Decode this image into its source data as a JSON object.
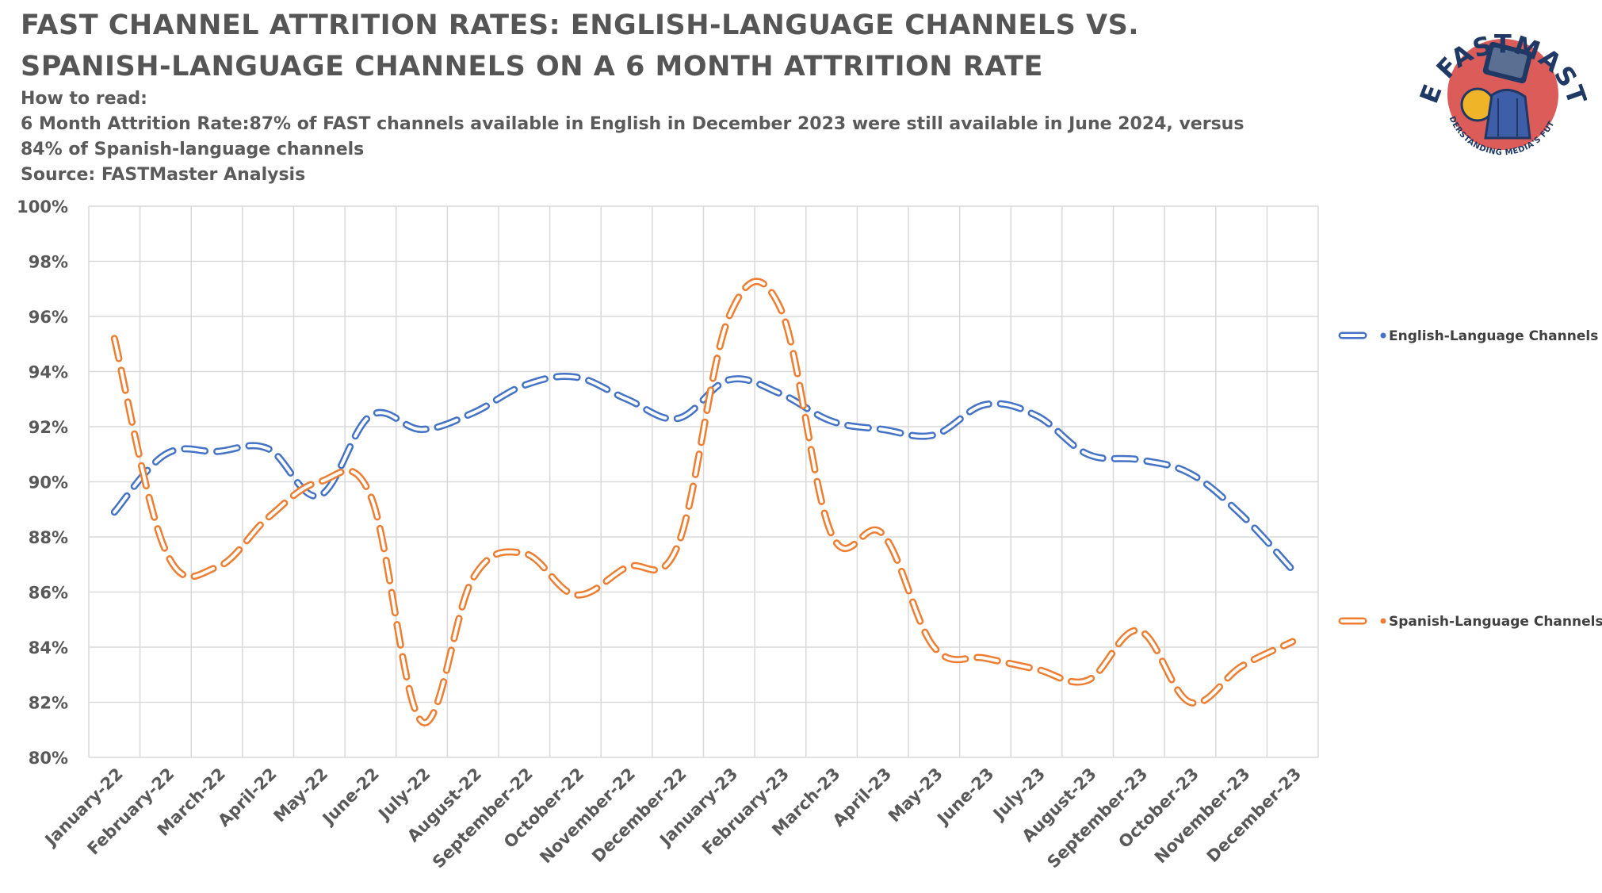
{
  "header": {
    "title": "FAST CHANNEL ATTRITION RATES: ENGLISH-LANGUAGE CHANNELS VS. SPANISH-LANGUAGE CHANNELS ON A 6 MONTH ATTRITION RATE",
    "how_to_read": "How to read:",
    "description": "6 Month Attrition Rate:87% of FAST channels available in English in December 2023 were still available in June 2024, versus 84% of Spanish-language channels",
    "source": "Source: FASTMaster Analysis"
  },
  "logo": {
    "text": "THE FASTMASTER",
    "tagline": "UNDERSTANDING MEDIA'S FUTURE",
    "icon": "tv-head-mascot-icon",
    "colors": {
      "navy": "#1f3864",
      "red": "#d9534f",
      "gold": "#f0b429"
    }
  },
  "chart_data": {
    "type": "line",
    "categories": [
      "January-22",
      "February-22",
      "March-22",
      "April-22",
      "May-22",
      "June-22",
      "July-22",
      "August-22",
      "September-22",
      "October-22",
      "November-22",
      "December-22",
      "January-23",
      "February-23",
      "March-23",
      "April-23",
      "May-23",
      "June-23",
      "July-23",
      "August-23",
      "September-23",
      "October-23",
      "November-23",
      "December-23"
    ],
    "ylim": [
      80,
      100
    ],
    "yticks": [
      "80%",
      "82%",
      "84%",
      "86%",
      "88%",
      "90%",
      "92%",
      "94%",
      "96%",
      "98%",
      "100%"
    ],
    "grid": true,
    "legend_position": "right",
    "series": [
      {
        "name": "English-Language Channels",
        "color": "#4472c4",
        "values": [
          88.9,
          91.0,
          91.1,
          91.2,
          89.5,
          92.4,
          91.9,
          92.5,
          93.5,
          93.8,
          93.0,
          92.3,
          93.7,
          93.2,
          92.2,
          91.9,
          91.7,
          92.8,
          92.4,
          91.0,
          90.8,
          90.3,
          88.8,
          86.8
        ]
      },
      {
        "name": "Spanish-Language Channels",
        "color": "#ed7d31",
        "values": [
          95.2,
          87.5,
          86.9,
          88.7,
          90.0,
          89.5,
          81.3,
          86.5,
          87.4,
          85.9,
          86.9,
          87.7,
          96.0,
          96.3,
          88.1,
          88.1,
          84.0,
          83.6,
          83.2,
          82.8,
          84.6,
          82.0,
          83.3,
          84.2
        ]
      }
    ]
  }
}
